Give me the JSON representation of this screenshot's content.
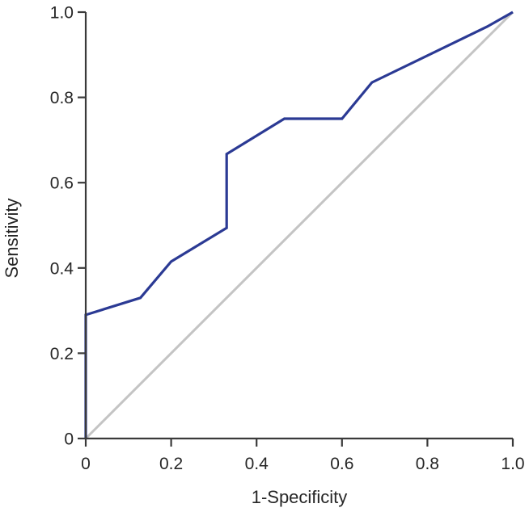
{
  "chart_data": {
    "type": "line",
    "title": "",
    "xlabel": "1-Specificity",
    "ylabel": "Sensitivity",
    "xlim": [
      0,
      1
    ],
    "ylim": [
      0,
      1
    ],
    "grid": false,
    "legend": "none",
    "x_ticks": [
      0,
      0.2,
      0.4,
      0.6,
      0.8,
      1.0
    ],
    "x_tick_labels": [
      "0",
      "0.2",
      "0.4",
      "0.6",
      "0.8",
      "1.0"
    ],
    "y_ticks": [
      0,
      0.2,
      0.4,
      0.6,
      0.8,
      1.0
    ],
    "y_tick_labels": [
      "0",
      "0.2",
      "0.4",
      "0.6",
      "0.8",
      "1.0"
    ],
    "axis_color": "#3a3a3a",
    "text_color": "#262626",
    "series": [
      {
        "name": "reference-diagonal",
        "color": "#c4c4c4",
        "stroke_width": 3,
        "points": [
          [
            0,
            0
          ],
          [
            1,
            1
          ]
        ]
      },
      {
        "name": "roc-curve",
        "color": "#2b3a94",
        "stroke_width": 3.2,
        "points": [
          [
            0,
            0
          ],
          [
            0,
            0.29
          ],
          [
            0.128,
            0.33
          ],
          [
            0.2,
            0.415
          ],
          [
            0.33,
            0.494
          ],
          [
            0.33,
            0.667
          ],
          [
            0.465,
            0.75
          ],
          [
            0.6,
            0.75
          ],
          [
            0.67,
            0.835
          ],
          [
            0.94,
            0.966
          ],
          [
            1,
            1
          ]
        ]
      }
    ]
  }
}
